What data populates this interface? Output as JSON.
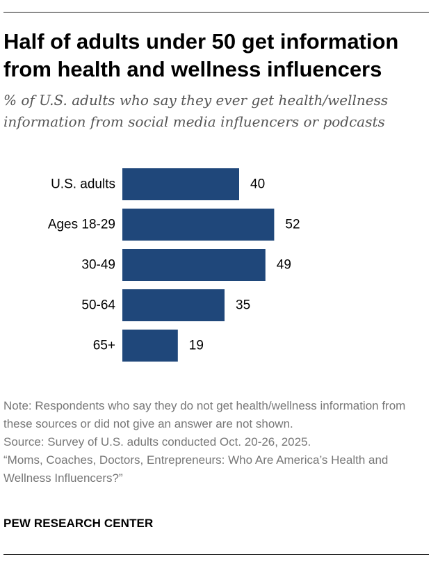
{
  "header": {
    "title": "Half of adults under 50 get information from health and wellness influencers",
    "subtitle": "% of U.S. adults who say they ever get health/wellness information from social media influencers or podcasts"
  },
  "chart_data": {
    "type": "bar",
    "orientation": "horizontal",
    "categories": [
      "U.S. adults",
      "Ages 18-29",
      "30-49",
      "50-64",
      "65+"
    ],
    "values": [
      40,
      52,
      49,
      35,
      19
    ],
    "value_labels": [
      "40",
      "52",
      "49",
      "35",
      "19"
    ],
    "title": "Half of adults under 50 get information from health and wellness influencers",
    "subtitle": "% of U.S. adults who say they ever get health/wellness information from social media influencers or podcasts",
    "xlabel": "",
    "ylabel": "",
    "xlim": [
      0,
      100
    ],
    "grid": false,
    "legend": "none",
    "bar_color": "#1f477a"
  },
  "notes": {
    "note": "Note: Respondents who say they do not get health/wellness information from these sources or did not give an answer are not shown.",
    "source": "Source: Survey of U.S. adults conducted Oct. 20-26, 2025.",
    "report": "“Moms, Coaches, Doctors, Entrepreneurs: Who Are America’s Health and Wellness Influencers?”"
  },
  "brand": {
    "name": "PEW RESEARCH CENTER"
  }
}
